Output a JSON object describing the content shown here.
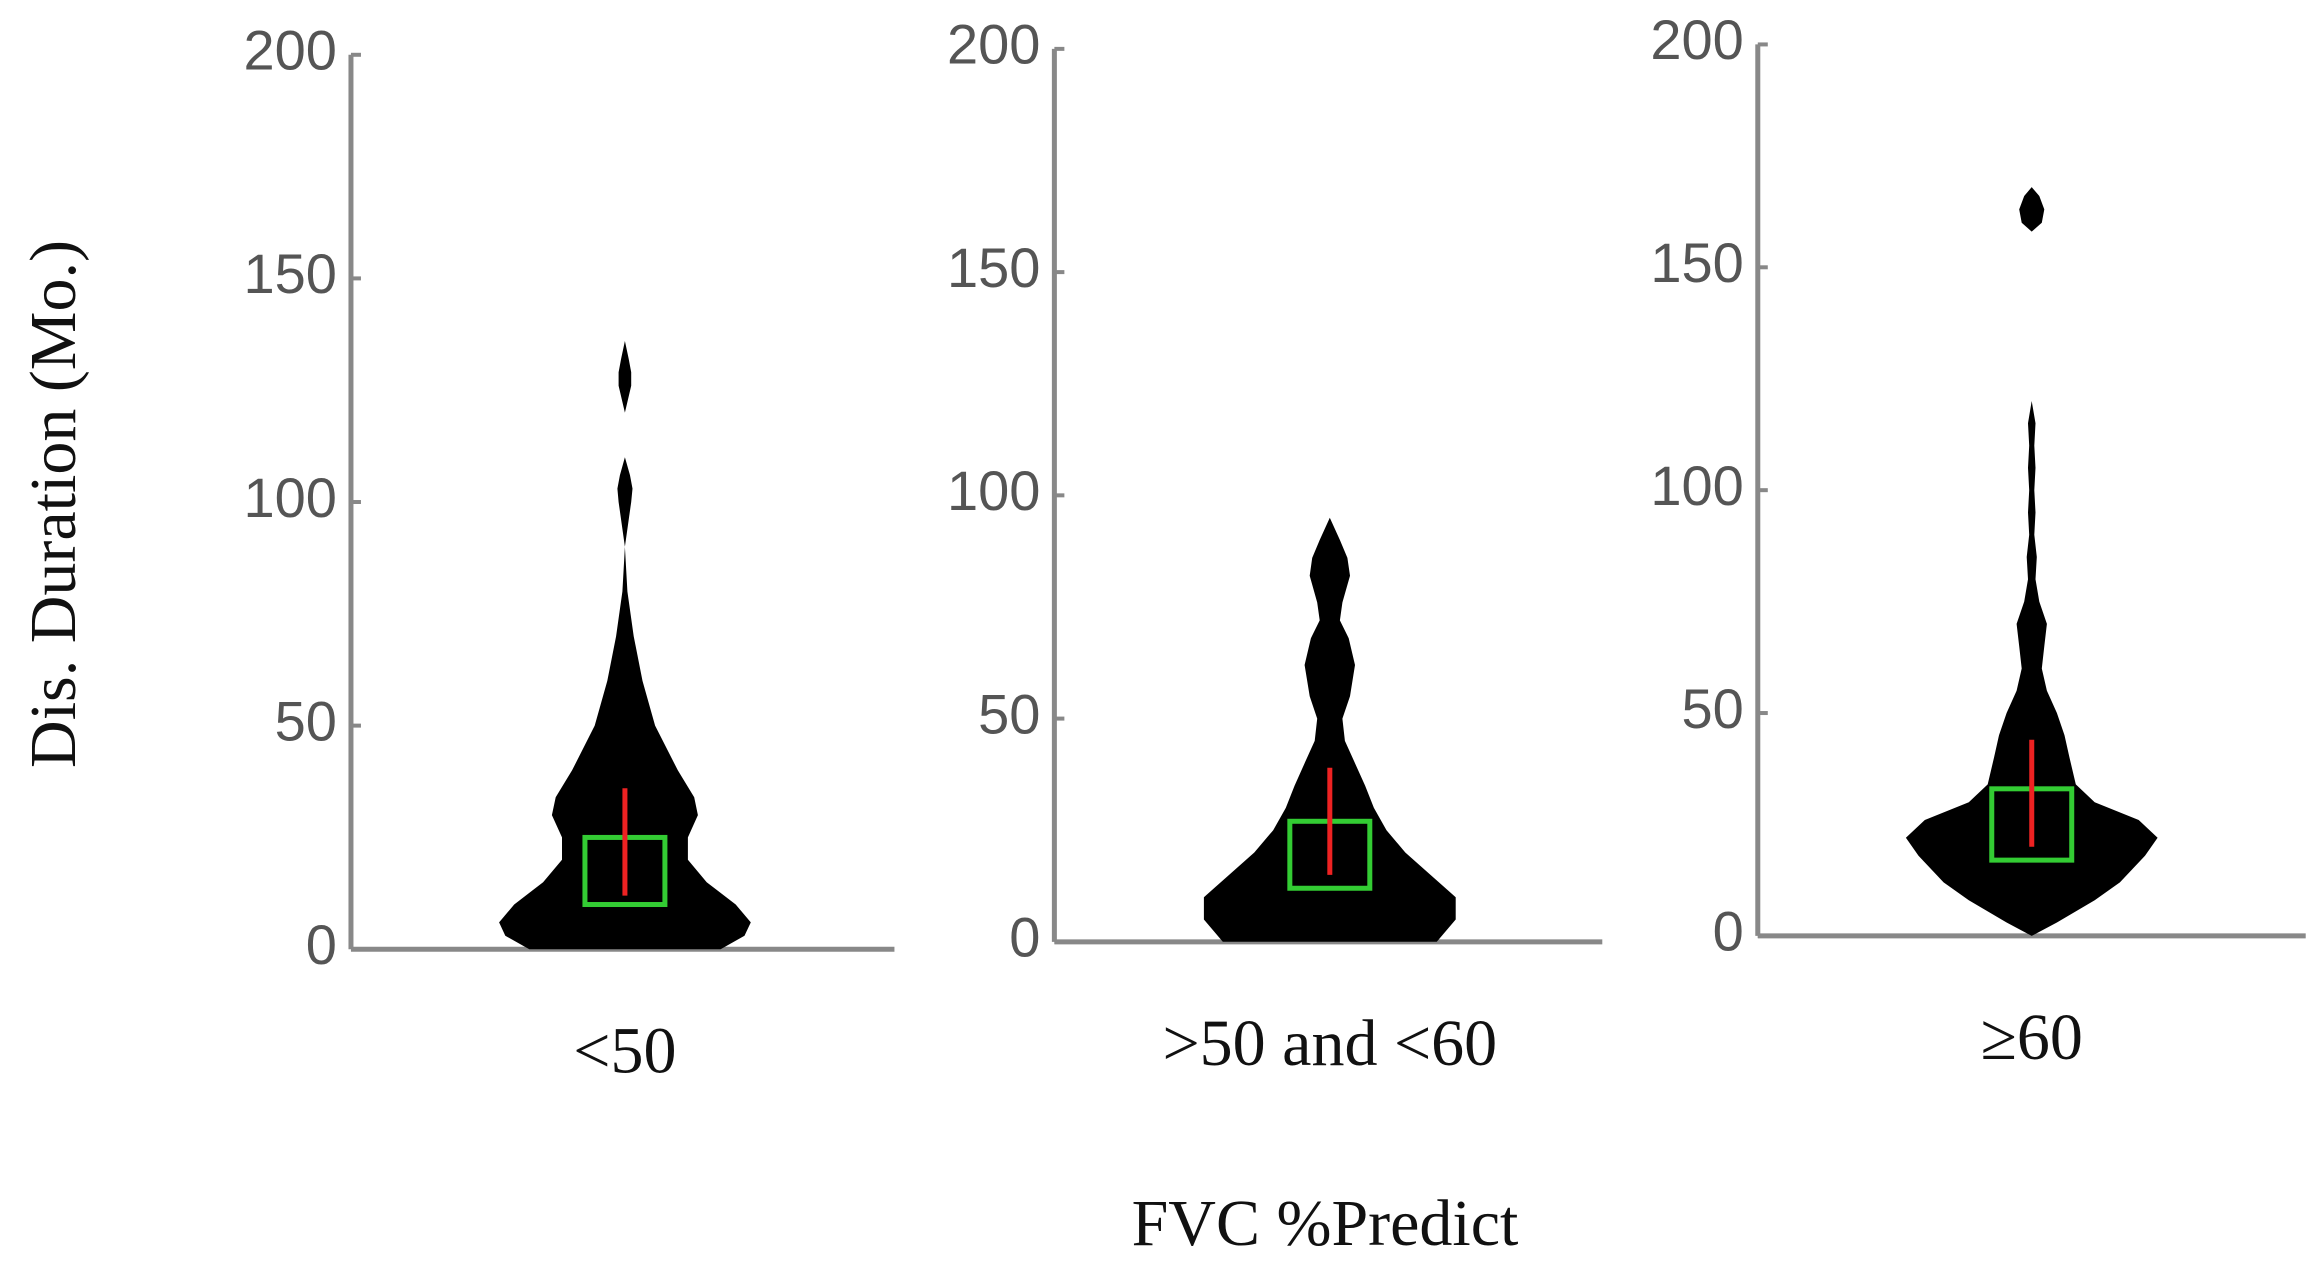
{
  "axis_titles": {
    "y": "Dis. Duration (Mo.)",
    "x": "FVC %Predict"
  },
  "chart_data": [
    {
      "type": "violin",
      "category": "<50",
      "ylim": [
        0,
        200
      ],
      "yticks": [
        0,
        50,
        100,
        150,
        200
      ],
      "y": [
        0,
        3,
        6,
        10,
        15,
        20,
        25,
        30,
        34,
        40,
        50,
        60,
        70,
        80,
        90,
        100,
        103,
        106,
        110,
        120,
        126,
        129,
        132,
        136
      ],
      "density": [
        0.76,
        0.95,
        1,
        0.88,
        0.65,
        0.5,
        0.5,
        0.58,
        0.55,
        0.42,
        0.24,
        0.14,
        0.07,
        0.02,
        0,
        0.05,
        0.06,
        0.04,
        0,
        0,
        0.05,
        0.05,
        0.03,
        0
      ],
      "box_lower": 10,
      "box_upper": 25,
      "line_lower": 12,
      "line_upper": 36
    },
    {
      "type": "violin",
      "category": ">50 and <60",
      "ylim": [
        0,
        200
      ],
      "yticks": [
        0,
        50,
        100,
        150,
        200
      ],
      "y": [
        0,
        5,
        10,
        15,
        20,
        25,
        30,
        35,
        40,
        45,
        50,
        55,
        62,
        68,
        72,
        76,
        82,
        86,
        90,
        95
      ],
      "density": [
        0.85,
        1,
        1,
        0.8,
        0.6,
        0.45,
        0.35,
        0.28,
        0.2,
        0.12,
        0.1,
        0.16,
        0.2,
        0.15,
        0.08,
        0.1,
        0.16,
        0.14,
        0.08,
        0
      ],
      "box_lower": 12,
      "box_upper": 27,
      "line_lower": 15,
      "line_upper": 39
    },
    {
      "type": "violin",
      "category": "≥60",
      "ylim": [
        0,
        200
      ],
      "yticks": [
        0,
        50,
        100,
        150,
        200
      ],
      "y": [
        0,
        3,
        8,
        12,
        18,
        22,
        26,
        30,
        34,
        40,
        45,
        50,
        55,
        60,
        65,
        70,
        75,
        80,
        85,
        90,
        95,
        100,
        105,
        110,
        115,
        120,
        158,
        160,
        163,
        166,
        168
      ],
      "density": [
        0,
        0.2,
        0.5,
        0.7,
        0.9,
        1,
        0.85,
        0.5,
        0.35,
        0.3,
        0.26,
        0.2,
        0.12,
        0.08,
        0.1,
        0.12,
        0.06,
        0.03,
        0.04,
        0.02,
        0.03,
        0.02,
        0.03,
        0.02,
        0.03,
        0,
        0,
        0.08,
        0.1,
        0.06,
        0
      ],
      "box_lower": 17,
      "box_upper": 33,
      "line_lower": 20,
      "line_upper": 44
    }
  ]
}
